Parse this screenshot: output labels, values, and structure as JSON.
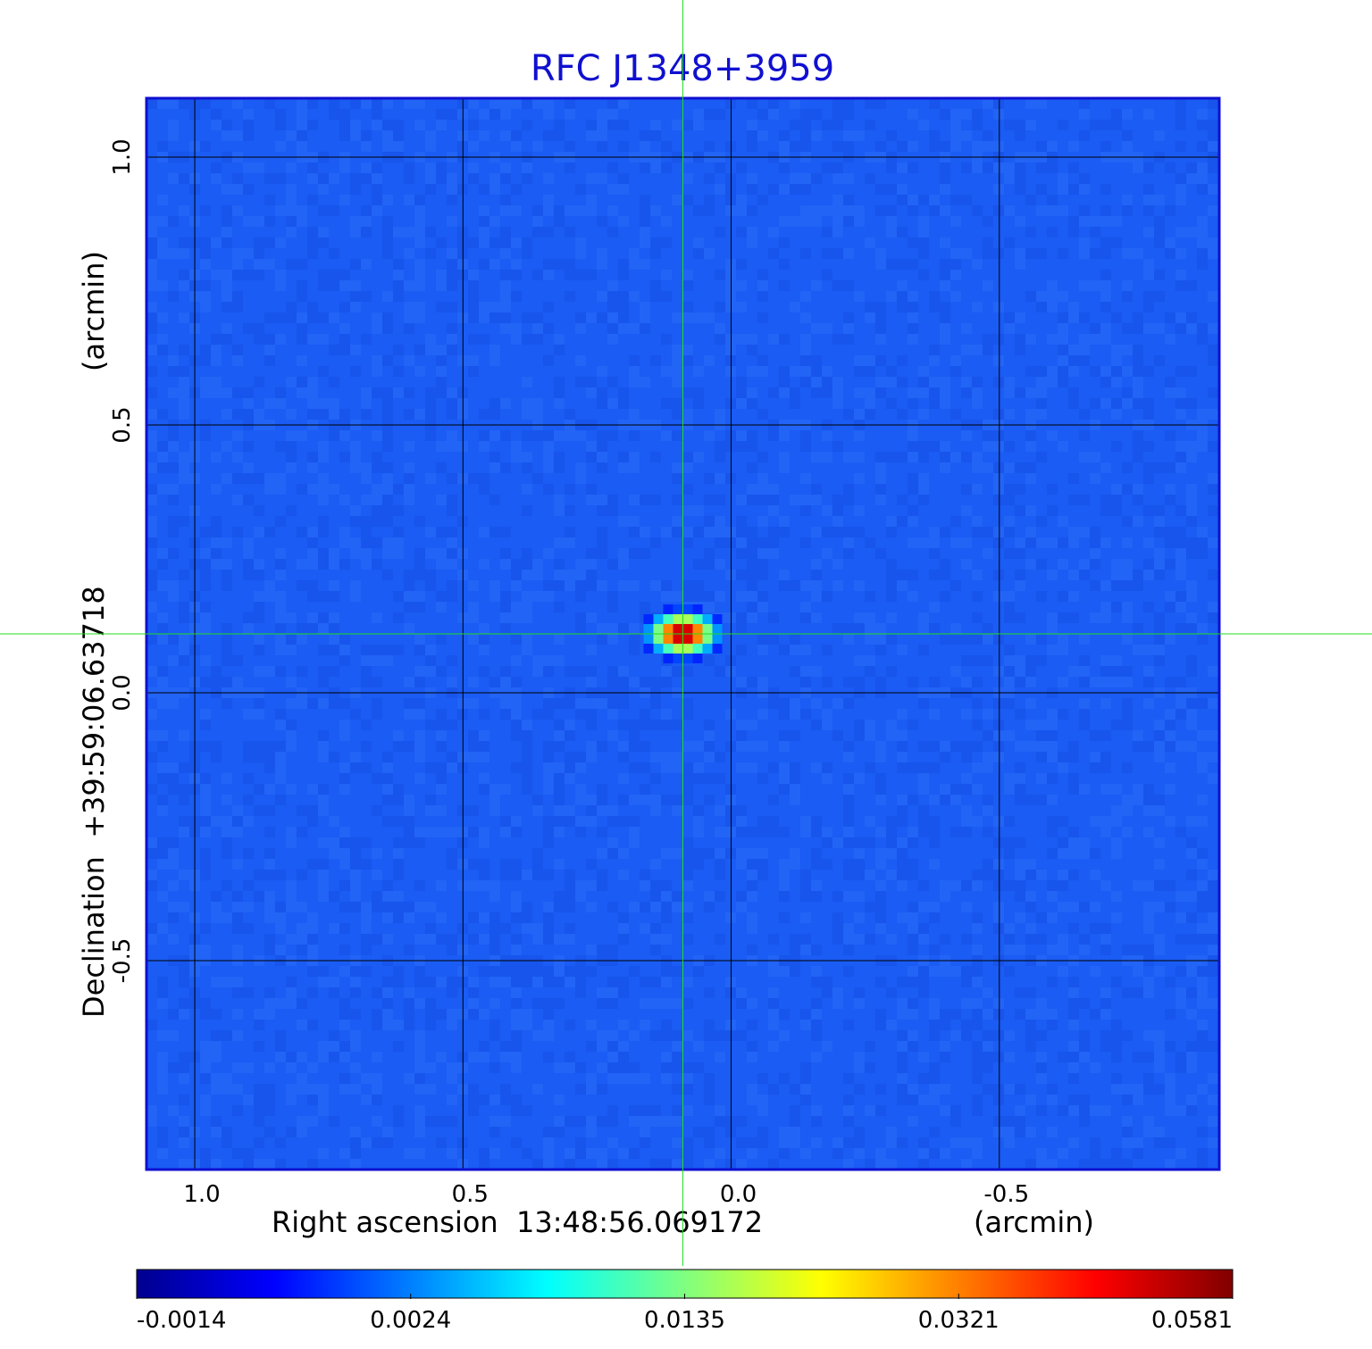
{
  "chart_data": {
    "type": "heatmap",
    "title": "RFC J1348+3959",
    "xlabel": "Right ascension  13:48:56.069172",
    "xlabel_unit": "(arcmin)",
    "ylabel": "Declination  +39:59:06.63718",
    "ylabel_unit": "(arcmin)",
    "x_ticks": [
      1.0,
      0.5,
      0.0,
      -0.5
    ],
    "x_tick_labels": [
      "1.0",
      "0.5",
      "0.0",
      "-0.5"
    ],
    "y_ticks": [
      1.0,
      0.5,
      0.0,
      -0.5
    ],
    "y_tick_labels": [
      "1.0",
      "0.5",
      "0.0",
      "-0.5"
    ],
    "xlim": [
      1.09,
      -0.91
    ],
    "ylim": [
      -0.89,
      1.11
    ],
    "grid": true,
    "crosshair": {
      "x": 0.09,
      "y": 0.11,
      "color": "#22dd22"
    },
    "colorbar": {
      "ticks": [
        "-0.0014",
        "0.0024",
        "0.0135",
        "0.0321",
        "0.0581"
      ],
      "colormap": "jet",
      "min": -0.0014,
      "max": 0.0581
    },
    "source": {
      "x": 0.09,
      "y": 0.11,
      "peak": 0.0581,
      "sigma_x": 0.04,
      "sigma_y": 0.025
    },
    "background_level": -0.0005
  }
}
